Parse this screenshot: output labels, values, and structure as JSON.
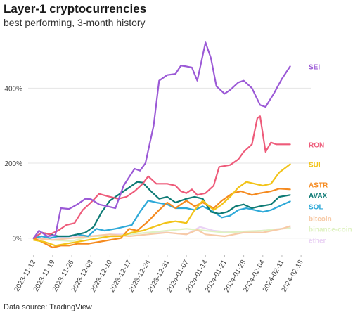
{
  "chart_data": {
    "type": "line",
    "title": "Layer-1 cryptocurrencies",
    "subtitle": "best performing, 3-month history",
    "source": "Data source: TradingView",
    "ylim": [
      -40,
      560
    ],
    "yticks": [
      {
        "value": 0,
        "label": "0%"
      },
      {
        "value": 200,
        "label": "200%"
      },
      {
        "value": 400,
        "label": "400%"
      }
    ],
    "xlim": [
      "2023-11-10",
      "2024-02-19"
    ],
    "xticks": [
      "2023-11-12",
      "2023-11-19",
      "2023-11-26",
      "2023-12-03",
      "2023-12-10",
      "2023-12-17",
      "2023-12-24",
      "2023-12-31",
      "2024-01-07",
      "2024-01-14",
      "2024-01-21",
      "2024-01-28",
      "2024-02-04",
      "2024-02-11",
      "2024-02-18"
    ],
    "grid": true,
    "legend": "direct labels at line ends",
    "series": [
      {
        "name": "SEI",
        "color": "#9b59d6",
        "points": [
          [
            "2023-11-12",
            0
          ],
          [
            "2023-11-14",
            20
          ],
          [
            "2023-11-17",
            5
          ],
          [
            "2023-11-20",
            8
          ],
          [
            "2023-11-22",
            80
          ],
          [
            "2023-11-25",
            78
          ],
          [
            "2023-11-28",
            90
          ],
          [
            "2023-12-01",
            105
          ],
          [
            "2023-12-03",
            104
          ],
          [
            "2023-12-06",
            90
          ],
          [
            "2023-12-09",
            85
          ],
          [
            "2023-12-12",
            80
          ],
          [
            "2023-12-15",
            140
          ],
          [
            "2023-12-19",
            185
          ],
          [
            "2023-12-21",
            180
          ],
          [
            "2023-12-23",
            200
          ],
          [
            "2023-12-26",
            300
          ],
          [
            "2023-12-28",
            420
          ],
          [
            "2023-12-31",
            435
          ],
          [
            "2024-01-03",
            438
          ],
          [
            "2024-01-05",
            460
          ],
          [
            "2024-01-07",
            458
          ],
          [
            "2024-01-09",
            455
          ],
          [
            "2024-01-11",
            420
          ],
          [
            "2024-01-14",
            522
          ],
          [
            "2024-01-16",
            480
          ],
          [
            "2024-01-18",
            405
          ],
          [
            "2024-01-21",
            385
          ],
          [
            "2024-01-23",
            395
          ],
          [
            "2024-01-26",
            415
          ],
          [
            "2024-01-28",
            420
          ],
          [
            "2024-01-31",
            400
          ],
          [
            "2024-02-03",
            355
          ],
          [
            "2024-02-05",
            350
          ],
          [
            "2024-02-08",
            385
          ],
          [
            "2024-02-11",
            425
          ],
          [
            "2024-02-14",
            458
          ]
        ]
      },
      {
        "name": "RON",
        "color": "#ee5b7a",
        "points": [
          [
            "2023-11-12",
            0
          ],
          [
            "2023-11-15",
            15
          ],
          [
            "2023-11-18",
            10
          ],
          [
            "2023-11-21",
            20
          ],
          [
            "2023-11-24",
            35
          ],
          [
            "2023-11-27",
            40
          ],
          [
            "2023-11-30",
            75
          ],
          [
            "2023-12-03",
            95
          ],
          [
            "2023-12-06",
            118
          ],
          [
            "2023-12-09",
            112
          ],
          [
            "2023-12-13",
            105
          ],
          [
            "2023-12-16",
            110
          ],
          [
            "2023-12-19",
            125
          ],
          [
            "2023-12-22",
            145
          ],
          [
            "2023-12-24",
            165
          ],
          [
            "2023-12-27",
            145
          ],
          [
            "2023-12-31",
            145
          ],
          [
            "2024-01-03",
            140
          ],
          [
            "2024-01-05",
            125
          ],
          [
            "2024-01-07",
            120
          ],
          [
            "2024-01-09",
            130
          ],
          [
            "2024-01-11",
            115
          ],
          [
            "2024-01-14",
            120
          ],
          [
            "2024-01-17",
            140
          ],
          [
            "2024-01-19",
            190
          ],
          [
            "2024-01-23",
            195
          ],
          [
            "2024-01-26",
            210
          ],
          [
            "2024-01-28",
            230
          ],
          [
            "2024-01-31",
            250
          ],
          [
            "2024-02-02",
            320
          ],
          [
            "2024-02-03",
            325
          ],
          [
            "2024-02-05",
            230
          ],
          [
            "2024-02-07",
            255
          ],
          [
            "2024-02-09",
            250
          ],
          [
            "2024-02-12",
            250
          ],
          [
            "2024-02-14",
            250
          ]
        ]
      },
      {
        "name": "SUI",
        "color": "#f2c318",
        "points": [
          [
            "2023-11-12",
            -5
          ],
          [
            "2023-11-16",
            -10
          ],
          [
            "2023-11-20",
            -20
          ],
          [
            "2023-11-24",
            -15
          ],
          [
            "2023-11-28",
            -10
          ],
          [
            "2023-12-02",
            -5
          ],
          [
            "2023-12-06",
            0
          ],
          [
            "2023-12-10",
            5
          ],
          [
            "2023-12-14",
            5
          ],
          [
            "2023-12-18",
            15
          ],
          [
            "2023-12-22",
            20
          ],
          [
            "2023-12-26",
            30
          ],
          [
            "2023-12-30",
            40
          ],
          [
            "2024-01-03",
            45
          ],
          [
            "2024-01-07",
            40
          ],
          [
            "2024-01-10",
            75
          ],
          [
            "2024-01-13",
            100
          ],
          [
            "2024-01-17",
            75
          ],
          [
            "2024-01-20",
            90
          ],
          [
            "2024-01-23",
            110
          ],
          [
            "2024-01-26",
            135
          ],
          [
            "2024-01-29",
            150
          ],
          [
            "2024-02-01",
            145
          ],
          [
            "2024-02-04",
            140
          ],
          [
            "2024-02-07",
            145
          ],
          [
            "2024-02-10",
            175
          ],
          [
            "2024-02-14",
            197
          ]
        ]
      },
      {
        "name": "ASTR",
        "color": "#f58a1f",
        "points": [
          [
            "2023-11-12",
            0
          ],
          [
            "2023-11-15",
            -10
          ],
          [
            "2023-11-19",
            -25
          ],
          [
            "2023-11-22",
            -20
          ],
          [
            "2023-11-25",
            -20
          ],
          [
            "2023-11-28",
            -15
          ],
          [
            "2023-12-02",
            -15
          ],
          [
            "2023-12-06",
            -10
          ],
          [
            "2023-12-10",
            -5
          ],
          [
            "2023-12-14",
            0
          ],
          [
            "2023-12-17",
            25
          ],
          [
            "2023-12-20",
            20
          ],
          [
            "2023-12-24",
            45
          ],
          [
            "2023-12-28",
            75
          ],
          [
            "2023-12-31",
            95
          ],
          [
            "2024-01-03",
            80
          ],
          [
            "2024-01-07",
            100
          ],
          [
            "2024-01-10",
            85
          ],
          [
            "2024-01-13",
            95
          ],
          [
            "2024-01-17",
            80
          ],
          [
            "2024-01-20",
            100
          ],
          [
            "2024-01-24",
            120
          ],
          [
            "2024-01-27",
            125
          ],
          [
            "2024-01-31",
            115
          ],
          [
            "2024-02-03",
            120
          ],
          [
            "2024-02-07",
            125
          ],
          [
            "2024-02-10",
            132
          ],
          [
            "2024-02-14",
            130
          ]
        ]
      },
      {
        "name": "AVAX",
        "color": "#0d7a75",
        "points": [
          [
            "2023-11-12",
            0
          ],
          [
            "2023-11-15",
            15
          ],
          [
            "2023-11-18",
            10
          ],
          [
            "2023-11-21",
            5
          ],
          [
            "2023-11-25",
            5
          ],
          [
            "2023-11-28",
            10
          ],
          [
            "2023-12-01",
            15
          ],
          [
            "2023-12-04",
            30
          ],
          [
            "2023-12-07",
            70
          ],
          [
            "2023-12-10",
            100
          ],
          [
            "2023-12-13",
            115
          ],
          [
            "2023-12-17",
            135
          ],
          [
            "2023-12-20",
            150
          ],
          [
            "2023-12-22",
            148
          ],
          [
            "2023-12-25",
            125
          ],
          [
            "2023-12-28",
            105
          ],
          [
            "2023-12-31",
            110
          ],
          [
            "2024-01-03",
            95
          ],
          [
            "2024-01-07",
            105
          ],
          [
            "2024-01-10",
            110
          ],
          [
            "2024-01-13",
            105
          ],
          [
            "2024-01-16",
            70
          ],
          [
            "2024-01-19",
            65
          ],
          [
            "2024-01-22",
            70
          ],
          [
            "2024-01-25",
            85
          ],
          [
            "2024-01-28",
            90
          ],
          [
            "2024-01-31",
            80
          ],
          [
            "2024-02-03",
            85
          ],
          [
            "2024-02-07",
            90
          ],
          [
            "2024-02-10",
            110
          ],
          [
            "2024-02-14",
            115
          ]
        ]
      },
      {
        "name": "SOL",
        "color": "#2ea9d8",
        "points": [
          [
            "2023-11-12",
            0
          ],
          [
            "2023-11-15",
            5
          ],
          [
            "2023-11-18",
            0
          ],
          [
            "2023-11-21",
            5
          ],
          [
            "2023-11-25",
            5
          ],
          [
            "2023-11-28",
            10
          ],
          [
            "2023-12-02",
            5
          ],
          [
            "2023-12-05",
            25
          ],
          [
            "2023-12-08",
            20
          ],
          [
            "2023-12-12",
            25
          ],
          [
            "2023-12-15",
            30
          ],
          [
            "2023-12-18",
            35
          ],
          [
            "2023-12-21",
            70
          ],
          [
            "2023-12-24",
            100
          ],
          [
            "2023-12-27",
            95
          ],
          [
            "2023-12-31",
            90
          ],
          [
            "2024-01-03",
            80
          ],
          [
            "2024-01-07",
            80
          ],
          [
            "2024-01-10",
            75
          ],
          [
            "2024-01-13",
            85
          ],
          [
            "2024-01-17",
            70
          ],
          [
            "2024-01-20",
            55
          ],
          [
            "2024-01-23",
            60
          ],
          [
            "2024-01-26",
            75
          ],
          [
            "2024-01-29",
            80
          ],
          [
            "2024-02-01",
            75
          ],
          [
            "2024-02-04",
            70
          ],
          [
            "2024-02-07",
            75
          ],
          [
            "2024-02-10",
            85
          ],
          [
            "2024-02-14",
            98
          ]
        ]
      },
      {
        "name": "bitcoin",
        "color": "#f7cba8",
        "points": [
          [
            "2023-11-12",
            0
          ],
          [
            "2023-11-19",
            -5
          ],
          [
            "2023-11-26",
            0
          ],
          [
            "2023-12-03",
            5
          ],
          [
            "2023-12-10",
            10
          ],
          [
            "2023-12-17",
            5
          ],
          [
            "2023-12-24",
            10
          ],
          [
            "2023-12-31",
            15
          ],
          [
            "2024-01-07",
            10
          ],
          [
            "2024-01-11",
            22
          ],
          [
            "2024-01-14",
            10
          ],
          [
            "2024-01-21",
            5
          ],
          [
            "2024-01-28",
            15
          ],
          [
            "2024-02-04",
            15
          ],
          [
            "2024-02-11",
            25
          ],
          [
            "2024-02-14",
            32
          ]
        ]
      },
      {
        "name": "binance-coin",
        "color": "#dff2c2",
        "points": [
          [
            "2023-11-12",
            0
          ],
          [
            "2023-11-19",
            -5
          ],
          [
            "2023-11-26",
            -8
          ],
          [
            "2023-12-03",
            5
          ],
          [
            "2023-12-10",
            5
          ],
          [
            "2023-12-17",
            10
          ],
          [
            "2023-12-24",
            15
          ],
          [
            "2023-12-31",
            20
          ],
          [
            "2024-01-07",
            25
          ],
          [
            "2024-01-14",
            20
          ],
          [
            "2024-01-21",
            15
          ],
          [
            "2024-01-28",
            18
          ],
          [
            "2024-02-04",
            20
          ],
          [
            "2024-02-11",
            25
          ],
          [
            "2024-02-14",
            27
          ]
        ]
      },
      {
        "name": "ether",
        "color": "#ead3f5",
        "points": [
          [
            "2023-11-12",
            0
          ],
          [
            "2023-11-19",
            0
          ],
          [
            "2023-11-26",
            5
          ],
          [
            "2023-12-03",
            5
          ],
          [
            "2023-12-10",
            10
          ],
          [
            "2023-12-17",
            10
          ],
          [
            "2023-12-24",
            15
          ],
          [
            "2023-12-31",
            15
          ],
          [
            "2024-01-07",
            10
          ],
          [
            "2024-01-12",
            30
          ],
          [
            "2024-01-17",
            20
          ],
          [
            "2024-01-24",
            15
          ],
          [
            "2024-01-31",
            18
          ],
          [
            "2024-02-07",
            22
          ],
          [
            "2024-02-14",
            28
          ]
        ]
      }
    ],
    "end_labels": [
      {
        "name": "SEI",
        "y": 458
      },
      {
        "name": "RON",
        "y": 250
      },
      {
        "name": "SUI",
        "y": 197
      },
      {
        "name": "ASTR",
        "y": 143
      },
      {
        "name": "AVAX",
        "y": 115
      },
      {
        "name": "SOL",
        "y": 85
      },
      {
        "name": "bitcoin",
        "y": 53
      },
      {
        "name": "binance-coin",
        "y": 25
      },
      {
        "name": "ether",
        "y": -5
      }
    ]
  }
}
